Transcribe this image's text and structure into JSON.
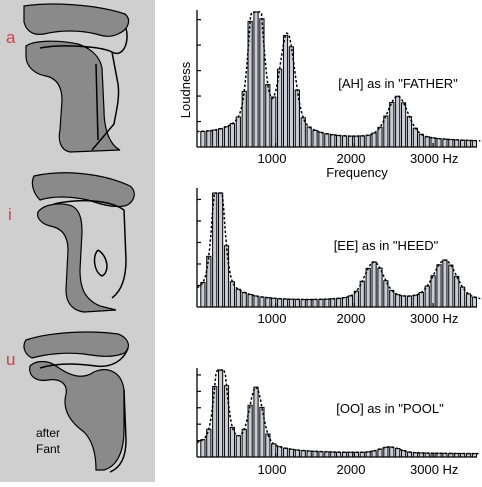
{
  "vowel_panel": {
    "letters": [
      "a",
      "i",
      "u"
    ],
    "credit_line1": "after",
    "credit_line2": "Fant"
  },
  "chart_data": [
    {
      "type": "bar",
      "title": "[AH] as in \"FATHER\"",
      "ylabel": "Loudness",
      "xlabel": "Frequency",
      "xlim": [
        0,
        3700
      ],
      "ylim": [
        0,
        1
      ],
      "xticks": [
        "1000",
        "2000",
        "3000 Hz"
      ],
      "xtick_values": [
        1000,
        2000,
        3000
      ],
      "harmonic_spacing": 75,
      "formants": [
        {
          "frequency": 750,
          "peak": 1.0
        },
        {
          "frequency": 1150,
          "peak": 0.6
        },
        {
          "frequency": 2550,
          "peak": 0.27
        }
      ]
    },
    {
      "type": "bar",
      "title": "[EE] as in \"HEED\"",
      "ylabel": "",
      "xlabel": "",
      "xlim": [
        0,
        3700
      ],
      "ylim": [
        0,
        1
      ],
      "xticks": [
        "1000",
        "2000",
        "3000 Hz"
      ],
      "xtick_values": [
        1000,
        2000,
        3000
      ],
      "harmonic_spacing": 75,
      "formants": [
        {
          "frequency": 270,
          "peak": 1.0
        },
        {
          "frequency": 2250,
          "peak": 0.28
        },
        {
          "frequency": 3150,
          "peak": 0.3
        }
      ]
    },
    {
      "type": "bar",
      "title": "[OO] as in \"POOL\"",
      "ylabel": "",
      "xlabel": "",
      "xlim": [
        0,
        3700
      ],
      "ylim": [
        0,
        1
      ],
      "xticks": [
        "1000",
        "2000",
        "3000 Hz"
      ],
      "xtick_values": [
        1000,
        2000,
        3000
      ],
      "harmonic_spacing": 75,
      "formants": [
        {
          "frequency": 300,
          "peak": 0.97
        },
        {
          "frequency": 750,
          "peak": 0.58
        },
        {
          "frequency": 2450,
          "peak": 0.06
        }
      ]
    }
  ]
}
